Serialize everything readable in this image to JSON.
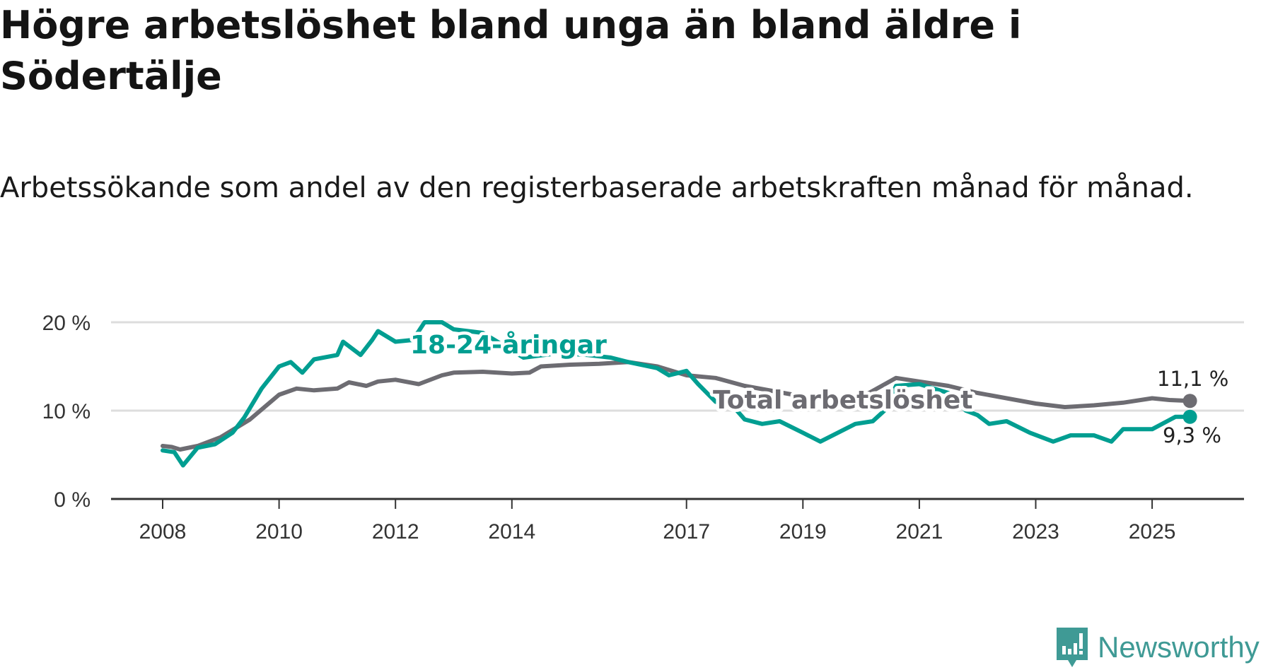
{
  "title": "Högre arbetslöshet bland unga än bland äldre i Södertälje",
  "subtitle": "Arbetssökande som andel av den registerbaserade arbetskraften månad för månad.",
  "brand": "Newsworthy",
  "colors": {
    "youth": "#009e91",
    "total": "#6d6c72",
    "grid": "#dddddd",
    "axis": "#333333",
    "brand": "#3f9a95"
  },
  "chart_data": {
    "type": "line",
    "title": "Högre arbetslöshet bland unga än bland äldre i Södertälje",
    "xlabel": "",
    "ylabel": "",
    "ylim": [
      0,
      20
    ],
    "xlim": [
      2007.1,
      2026.0
    ],
    "yticks": [
      {
        "v": 0,
        "label": "0 %"
      },
      {
        "v": 10,
        "label": "10 %"
      },
      {
        "v": 20,
        "label": "20 %"
      }
    ],
    "xticks": [
      {
        "v": 2008,
        "label": "2008"
      },
      {
        "v": 2010,
        "label": "2010"
      },
      {
        "v": 2012,
        "label": "2012"
      },
      {
        "v": 2014,
        "label": "2014"
      },
      {
        "v": 2017,
        "label": "2017"
      },
      {
        "v": 2019,
        "label": "2019"
      },
      {
        "v": 2021,
        "label": "2021"
      },
      {
        "v": 2023,
        "label": "2023"
      },
      {
        "v": 2025,
        "label": "2025"
      }
    ],
    "grid": true,
    "series": [
      {
        "name": "Total arbetslöshet",
        "key": "total",
        "end_label": "11,1 %",
        "x": [
          2008.0,
          2008.15,
          2008.3,
          2008.6,
          2009.0,
          2009.5,
          2010.0,
          2010.3,
          2010.6,
          2011.0,
          2011.2,
          2011.5,
          2011.7,
          2012.0,
          2012.4,
          2012.8,
          2013.0,
          2013.5,
          2014.0,
          2014.3,
          2014.5,
          2015.0,
          2015.5,
          2016.0,
          2016.5,
          2017.0,
          2017.5,
          2018.0,
          2018.5,
          2019.0,
          2019.5,
          2020.0,
          2020.6,
          2021.0,
          2021.5,
          2022.0,
          2022.5,
          2023.0,
          2023.5,
          2024.0,
          2024.5,
          2025.0,
          2025.3,
          2025.65
        ],
        "y": [
          6.0,
          5.9,
          5.6,
          6.0,
          7.0,
          9.0,
          11.8,
          12.5,
          12.3,
          12.5,
          13.2,
          12.8,
          13.3,
          13.5,
          13.0,
          14.0,
          14.3,
          14.4,
          14.2,
          14.3,
          15.0,
          15.2,
          15.3,
          15.5,
          15.0,
          14.0,
          13.7,
          12.8,
          12.2,
          11.6,
          11.4,
          11.5,
          13.7,
          13.3,
          12.8,
          12.0,
          11.4,
          10.8,
          10.4,
          10.6,
          10.9,
          11.4,
          11.2,
          11.1
        ]
      },
      {
        "name": "18-24-åringar",
        "key": "youth",
        "end_label": "9,3 %",
        "x": [
          2008.0,
          2008.2,
          2008.35,
          2008.6,
          2008.9,
          2009.2,
          2009.4,
          2009.7,
          2010.0,
          2010.2,
          2010.4,
          2010.6,
          2011.0,
          2011.1,
          2011.4,
          2011.6,
          2011.7,
          2012.0,
          2012.3,
          2012.5,
          2012.8,
          2013.0,
          2013.5,
          2014.2,
          2014.8,
          2015.3,
          2015.7,
          2016.0,
          2016.5,
          2016.7,
          2017.0,
          2017.2,
          2017.5,
          2017.8,
          2018.0,
          2018.3,
          2018.6,
          2019.0,
          2019.3,
          2019.6,
          2019.9,
          2020.2,
          2020.4,
          2020.6,
          2021.0,
          2021.5,
          2021.8,
          2022.0,
          2022.2,
          2022.5,
          2022.9,
          2023.3,
          2023.6,
          2024.0,
          2024.3,
          2024.5,
          2025.0,
          2025.4,
          2025.65
        ],
        "y": [
          5.5,
          5.3,
          3.8,
          5.8,
          6.2,
          7.5,
          9.2,
          12.5,
          15.0,
          15.5,
          14.3,
          15.8,
          16.3,
          17.8,
          16.3,
          18.0,
          19.0,
          17.8,
          18.0,
          20.0,
          20.0,
          19.2,
          18.8,
          16.0,
          16.5,
          16.3,
          16.0,
          15.5,
          14.8,
          14.0,
          14.5,
          13.0,
          11.0,
          10.5,
          9.0,
          8.5,
          8.8,
          7.5,
          6.5,
          7.5,
          8.5,
          8.8,
          10.0,
          12.8,
          13.0,
          12.0,
          10.0,
          9.5,
          8.5,
          8.8,
          7.5,
          6.5,
          7.2,
          7.2,
          6.5,
          7.9,
          7.9,
          9.3,
          9.3
        ]
      }
    ],
    "annotations": [
      "18-24-åringar",
      "Total arbetslöshet"
    ]
  }
}
